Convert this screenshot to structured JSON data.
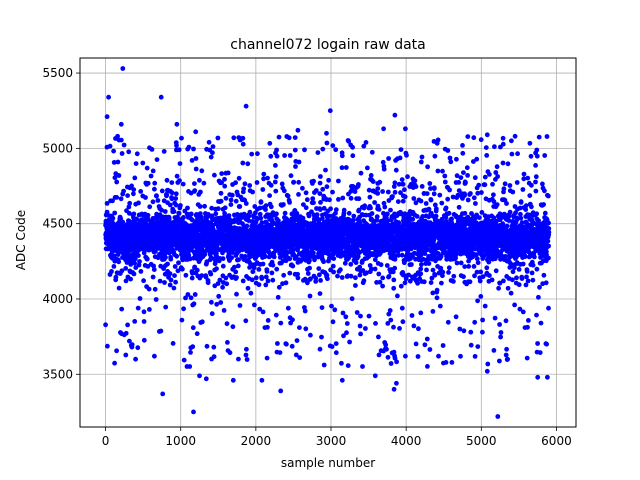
{
  "chart_data": {
    "type": "scatter",
    "title": "channel072 logain raw data",
    "xlabel": "sample number",
    "ylabel": "ADC Code",
    "xlim": [
      -340,
      6260
    ],
    "ylim": [
      3150,
      5600
    ],
    "xticks": [
      0,
      1000,
      2000,
      3000,
      4000,
      5000,
      6000
    ],
    "yticks": [
      3500,
      4000,
      4500,
      5000,
      5500
    ],
    "grid": true,
    "marker_color": "#0000ff",
    "series": [
      {
        "description": "ADC samples, ~6000 points; dense band 4270-4560 with sparser outliers",
        "n_samples": 5900,
        "dense_band": [
          4270,
          4560
        ],
        "outliers": [
          {
            "x": 230,
            "y": 5530
          },
          {
            "x": 40,
            "y": 5340
          },
          {
            "x": 740,
            "y": 5340
          },
          {
            "x": 20,
            "y": 5210
          },
          {
            "x": 1870,
            "y": 5280
          },
          {
            "x": 2990,
            "y": 5250
          },
          {
            "x": 3850,
            "y": 5220
          },
          {
            "x": 3700,
            "y": 5130
          },
          {
            "x": 3990,
            "y": 5130
          },
          {
            "x": 210,
            "y": 5160
          },
          {
            "x": 950,
            "y": 5160
          },
          {
            "x": 2940,
            "y": 5100
          },
          {
            "x": 5080,
            "y": 5090
          },
          {
            "x": 5450,
            "y": 5080
          },
          {
            "x": 2560,
            "y": 5120
          },
          {
            "x": 1200,
            "y": 5110
          },
          {
            "x": 160,
            "y": 5080
          },
          {
            "x": 5400,
            "y": 5050
          },
          {
            "x": 780,
            "y": 4980
          },
          {
            "x": 4750,
            "y": 5020
          },
          {
            "x": 760,
            "y": 3370
          },
          {
            "x": 1170,
            "y": 3250
          },
          {
            "x": 5220,
            "y": 3220
          },
          {
            "x": 2330,
            "y": 3390
          },
          {
            "x": 3870,
            "y": 3440
          },
          {
            "x": 3840,
            "y": 3400
          },
          {
            "x": 5080,
            "y": 3520
          },
          {
            "x": 5880,
            "y": 3480
          },
          {
            "x": 1700,
            "y": 3460
          },
          {
            "x": 1340,
            "y": 3470
          },
          {
            "x": 3150,
            "y": 3460
          },
          {
            "x": 2080,
            "y": 3460
          },
          {
            "x": 5750,
            "y": 3480
          },
          {
            "x": 1250,
            "y": 3490
          },
          {
            "x": 3590,
            "y": 3490
          },
          {
            "x": 400,
            "y": 3600
          },
          {
            "x": 5350,
            "y": 3600
          },
          {
            "x": 4430,
            "y": 3620
          },
          {
            "x": 650,
            "y": 3620
          },
          {
            "x": 3990,
            "y": 3620
          }
        ]
      }
    ]
  }
}
